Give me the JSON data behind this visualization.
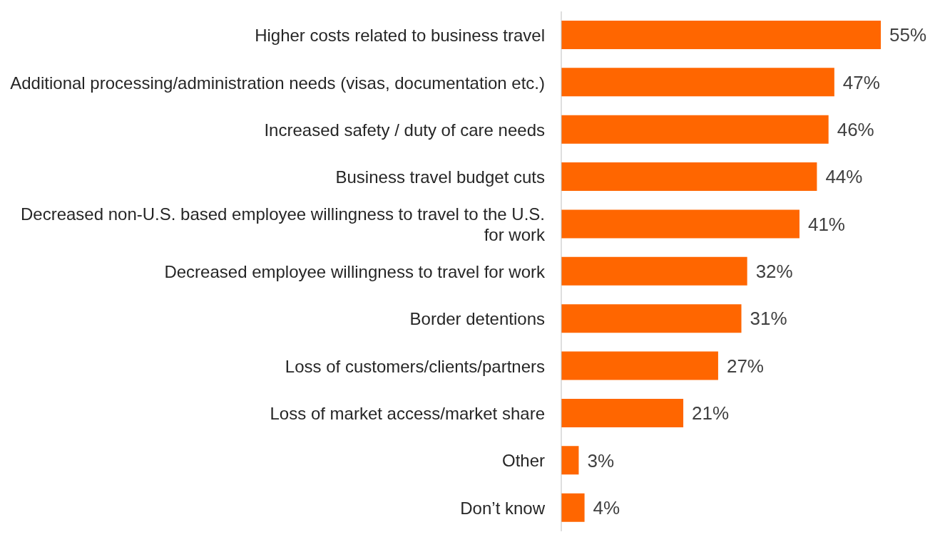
{
  "chart_data": {
    "type": "bar",
    "orientation": "horizontal",
    "categories": [
      "Higher costs related to business travel",
      "Additional processing/administration needs (visas, documentation etc.)",
      "Increased safety / duty of care needs",
      "Business travel budget cuts",
      "Decreased non-U.S. based employee willingness to travel to the U.S. for work",
      "Decreased employee willingness to travel for work",
      "Border detentions",
      "Loss of customers/clients/partners",
      "Loss of market access/market share",
      "Other",
      "Don’t know"
    ],
    "values": [
      55,
      47,
      46,
      44,
      41,
      32,
      31,
      27,
      21,
      3,
      4
    ],
    "value_labels": [
      "55%",
      "47%",
      "46%",
      "44%",
      "41%",
      "32%",
      "31%",
      "27%",
      "21%",
      "3%",
      "4%"
    ],
    "color": "#ff6600",
    "tick_labels": "y",
    "grid": false,
    "legend": false
  }
}
